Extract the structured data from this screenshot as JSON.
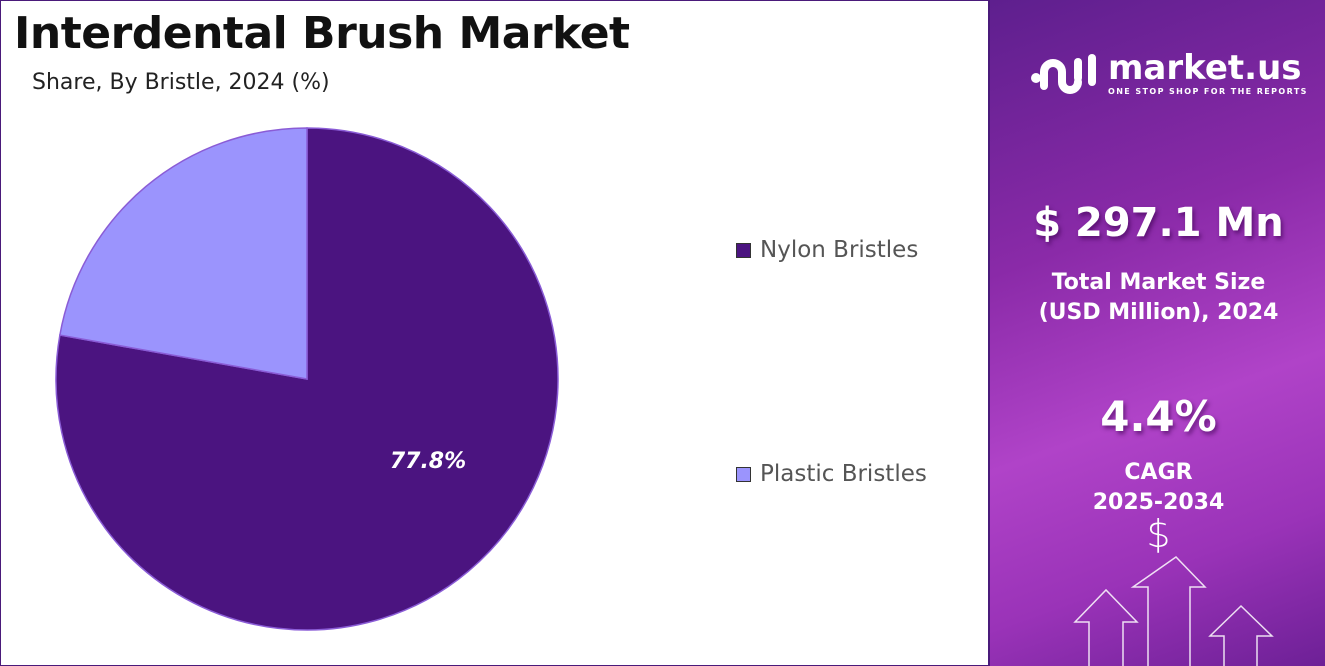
{
  "header": {
    "title": "Interdental Brush Market",
    "subtitle": "Share, By Bristle, 2024 (%)"
  },
  "chart_data": {
    "type": "pie",
    "title": "Interdental Brush Market",
    "subtitle": "Share, By Bristle, 2024 (%)",
    "categories": [
      "Nylon Bristles",
      "Plastic Bristles"
    ],
    "values": [
      77.8,
      22.2
    ],
    "colors": [
      "#4b1480",
      "#9b94fd"
    ],
    "data_labels": [
      "77.8%",
      ""
    ],
    "legend_position": "right",
    "start": "top, clockwise"
  },
  "legend": [
    {
      "label": "Nylon Bristles",
      "color": "#4b1480"
    },
    {
      "label": "Plastic Bristles",
      "color": "#9b94fd"
    }
  ],
  "panel": {
    "logo_text": "market.us",
    "logo_tagline": "ONE STOP SHOP FOR THE REPORTS",
    "market_size": "$ 297.1 Mn",
    "market_size_label_1": "Total Market Size",
    "market_size_label_2": "(USD Million), 2024",
    "cagr": "4.4%",
    "cagr_label_1": "CAGR",
    "cagr_label_2": "2025-2034",
    "dollar_symbol": "$"
  }
}
